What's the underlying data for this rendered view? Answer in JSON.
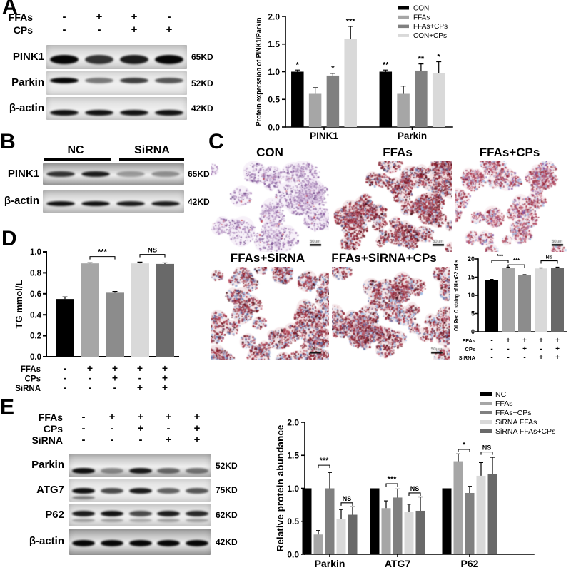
{
  "panels": {
    "a": {
      "letter": "A",
      "blot": {
        "condition_rows": [
          {
            "label": "FFAs",
            "signs": [
              "-",
              "+",
              "+",
              "-"
            ]
          },
          {
            "label": "CPs",
            "signs": [
              "-",
              "-",
              "+",
              "+"
            ]
          }
        ],
        "strips": [
          {
            "label": "PINK1",
            "kd": "65KD",
            "bg": "#cbcbcb",
            "bands": [
              1.0,
              0.8,
              0.9,
              1.0
            ]
          },
          {
            "label": "Parkin",
            "kd": "52KD",
            "bg": "#e2e2e2",
            "bands": [
              1.0,
              0.5,
              0.75,
              0.65
            ]
          },
          {
            "label": "β-actin",
            "kd": "42KD",
            "bg": "#d8d8d8",
            "bands": [
              0.95,
              0.95,
              0.95,
              0.95
            ]
          }
        ]
      }
    },
    "b": {
      "letter": "B",
      "blot": {
        "groups": [
          {
            "label": "NC"
          },
          {
            "label": "SiRNA"
          }
        ],
        "strips": [
          {
            "label": "PINK1",
            "kd": "65KD",
            "bg": "#a2a2a2",
            "bands": [
              0.8,
              0.9,
              0.35,
              0.4
            ]
          },
          {
            "label": "β-actin",
            "kd": "42KD",
            "bg": "#c4c4c4",
            "bands": [
              0.95,
              0.95,
              0.9,
              0.9
            ]
          }
        ]
      }
    },
    "c": {
      "letter": "C",
      "scale_bar_label": "50μm",
      "micrographs": [
        {
          "label": "CON",
          "seed": 11,
          "clusters": 26,
          "r_min": 8,
          "r_max": 20,
          "density": 0.38,
          "wash": "#ecdff1",
          "wash_alpha": 0.85,
          "dot_size": 2.0,
          "colors": [
            [
              "#a57fb5",
              0.38
            ],
            [
              "#8a5f9f",
              0.2
            ],
            [
              "#c9aed3",
              0.22
            ],
            [
              "#6d4a86",
              0.12
            ],
            [
              "#c23b4e",
              0.03
            ],
            [
              "#ffffff",
              0.05
            ]
          ]
        },
        {
          "label": "FFAs",
          "seed": 22,
          "clusters": 46,
          "r_min": 7,
          "r_max": 17,
          "density": 0.6,
          "wash": "#d9a3ab",
          "wash_alpha": 0.55,
          "dot_size": 2.2,
          "colors": [
            [
              "#8e1f2e",
              0.3
            ],
            [
              "#6b0f1c",
              0.18
            ],
            [
              "#b44458",
              0.2
            ],
            [
              "#9db9e2",
              0.13
            ],
            [
              "#54649e",
              0.07
            ],
            [
              "#3a0a12",
              0.06
            ],
            [
              "#eef2fa",
              0.06
            ]
          ]
        },
        {
          "label": "FFAs+CPs",
          "seed": 33,
          "clusters": 30,
          "r_min": 7,
          "r_max": 16,
          "density": 0.55,
          "wash": "#e6bcc6",
          "wash_alpha": 0.5,
          "dot_size": 2.1,
          "colors": [
            [
              "#a8374e",
              0.28
            ],
            [
              "#8e1f2e",
              0.16
            ],
            [
              "#c86a80",
              0.22
            ],
            [
              "#9db9e2",
              0.17
            ],
            [
              "#dce6f5",
              0.08
            ],
            [
              "#7d4f9e",
              0.09
            ]
          ]
        },
        {
          "label": "FFAs+SiRNA",
          "seed": 44,
          "clusters": 44,
          "r_min": 7,
          "r_max": 16,
          "density": 0.58,
          "wash": "#d9a3ab",
          "wash_alpha": 0.5,
          "dot_size": 2.2,
          "colors": [
            [
              "#8e1f2e",
              0.26
            ],
            [
              "#6b0f1c",
              0.15
            ],
            [
              "#b44458",
              0.2
            ],
            [
              "#9db9e2",
              0.17
            ],
            [
              "#54649e",
              0.09
            ],
            [
              "#3a0a12",
              0.05
            ],
            [
              "#eef2fa",
              0.08
            ]
          ]
        },
        {
          "label": "FFAs+SiRNA+CPs",
          "seed": 55,
          "clusters": 42,
          "r_min": 7,
          "r_max": 16,
          "density": 0.56,
          "wash": "#d9a3ab",
          "wash_alpha": 0.5,
          "dot_size": 2.2,
          "colors": [
            [
              "#8e1f2e",
              0.26
            ],
            [
              "#6b0f1c",
              0.14
            ],
            [
              "#b44458",
              0.21
            ],
            [
              "#9db9e2",
              0.17
            ],
            [
              "#54649e",
              0.09
            ],
            [
              "#3a0a12",
              0.05
            ],
            [
              "#eef2fa",
              0.08
            ]
          ]
        }
      ]
    },
    "d": {
      "letter": "D"
    },
    "e": {
      "letter": "E",
      "blot": {
        "condition_rows": [
          {
            "label": "FFAs",
            "signs": [
              "-",
              "+",
              "+",
              "+",
              "+"
            ]
          },
          {
            "label": "CPs",
            "signs": [
              "-",
              "-",
              "+",
              "-",
              "+"
            ]
          },
          {
            "label": "SiRNA",
            "signs": [
              "-",
              "-",
              "-",
              "+",
              "+"
            ]
          }
        ],
        "strips": [
          {
            "label": "Parkin",
            "kd": "52KD",
            "bg": "#b3b3b3",
            "bands": [
              0.95,
              0.4,
              0.9,
              0.55,
              0.5
            ]
          },
          {
            "label": "ATG7",
            "kd": "75KD",
            "bg": "#e0e0e0",
            "bands": [
              0.95,
              0.7,
              0.9,
              0.6,
              0.65
            ],
            "sub": [
              0.45,
              0,
              0,
              0,
              0
            ]
          },
          {
            "label": "P62",
            "kd": "62KD",
            "bg": "#d4d4d4",
            "bands": [
              0.9,
              0.95,
              0.7,
              0.9,
              0.85
            ],
            "sub": [
              0.3,
              0.3,
              0.25,
              0.3,
              0.3
            ]
          },
          {
            "label": "β-actin",
            "kd": "42KD",
            "bg": "#9c9c9c",
            "bands": [
              1,
              1,
              1,
              1,
              1
            ]
          }
        ]
      }
    }
  },
  "chart_data": [
    {
      "id": "A_pink1_parkin",
      "type": "bar",
      "ylabel": "Protein experssion of PINK1/Parkin",
      "ylim": [
        0,
        2.0
      ],
      "ytick_labels": [
        "0.0",
        "0.5",
        "1.0",
        "1.5",
        "2.0"
      ],
      "categories": [
        "PINK1",
        "Parkin"
      ],
      "legend_position": "top-right",
      "grid": false,
      "series": [
        {
          "name": "CON",
          "color": "#000000",
          "values": [
            1.0,
            1.0
          ],
          "errors": [
            0.03,
            0.03
          ],
          "sig": [
            "*",
            "**"
          ]
        },
        {
          "name": "FFAs",
          "color": "#a6a6a6",
          "values": [
            0.6,
            0.6
          ],
          "errors": [
            0.11,
            0.14
          ],
          "sig": [
            "",
            ""
          ]
        },
        {
          "name": "FFAs+CPs",
          "color": "#808080",
          "values": [
            0.93,
            1.02
          ],
          "errors": [
            0.04,
            0.12
          ],
          "sig": [
            "*",
            "**"
          ]
        },
        {
          "name": "CON+CPs",
          "color": "#d9d9d9",
          "values": [
            1.6,
            0.97
          ],
          "errors": [
            0.22,
            0.21
          ],
          "sig": [
            "***",
            "*"
          ]
        }
      ]
    },
    {
      "id": "C_oilred",
      "type": "bar",
      "ylabel": "Oil Red O staing of HepG2 cells",
      "ylim": [
        0,
        20
      ],
      "ytick_labels": [
        "0",
        "5",
        "10",
        "15",
        "20"
      ],
      "values": [
        14.2,
        17.6,
        15.5,
        17.4,
        17.6
      ],
      "errors": [
        0.2,
        0.15,
        0.2,
        0.15,
        0.15
      ],
      "bar_colors": [
        "#000000",
        "#a6a6a6",
        "#8c8c8c",
        "#d9d9d9",
        "#696969"
      ],
      "sign_rows": [
        {
          "label": "FFAs",
          "signs": [
            "-",
            "+",
            "+",
            "+",
            "+"
          ]
        },
        {
          "label": "CPs",
          "signs": [
            "-",
            "-",
            "+",
            "-",
            "+"
          ]
        },
        {
          "label": "SiRNA",
          "signs": [
            "-",
            "-",
            "-",
            "+",
            "+"
          ]
        }
      ],
      "brackets": [
        {
          "from": 0,
          "to": 1,
          "label": "***",
          "y": 19.6
        },
        {
          "from": 1,
          "to": 2,
          "label": "***",
          "y": 18.4
        },
        {
          "from": 3,
          "to": 4,
          "label": "NS",
          "y": 19.5
        }
      ]
    },
    {
      "id": "D_tg",
      "type": "bar",
      "ylabel": "TG mmol/L",
      "ylim": [
        0,
        1.0
      ],
      "ytick_labels": [
        "0.0",
        "0.2",
        "0.4",
        "0.6",
        "0.8",
        "1.0"
      ],
      "values": [
        0.55,
        0.89,
        0.61,
        0.89,
        0.885
      ],
      "errors": [
        0.02,
        0.006,
        0.012,
        0.012,
        0.01
      ],
      "bar_colors": [
        "#000000",
        "#a6a6a6",
        "#8c8c8c",
        "#d9d9d9",
        "#696969"
      ],
      "sign_rows": [
        {
          "label": "FFAs",
          "signs": [
            "-",
            "+",
            "+",
            "+",
            "+"
          ]
        },
        {
          "label": "CPs",
          "signs": [
            "-",
            "-",
            "+",
            "-",
            "+"
          ]
        },
        {
          "label": "SiRNA",
          "signs": [
            "-",
            "-",
            "-",
            "+",
            "+"
          ]
        }
      ],
      "brackets": [
        {
          "from": 1,
          "to": 2,
          "label": "***",
          "y": 0.955
        },
        {
          "from": 3,
          "to": 4,
          "label": "NS",
          "y": 0.975
        }
      ]
    },
    {
      "id": "E_relative",
      "type": "bar",
      "ylabel": "Relative protein abundance",
      "ylim": [
        0,
        2.0
      ],
      "ytick_labels": [
        "0.0",
        "0.5",
        "1.0",
        "1.5",
        "2.0"
      ],
      "categories": [
        "Parkin",
        "ATG7",
        "P62"
      ],
      "legend_position": "top-right",
      "grid": false,
      "series": [
        {
          "name": "NC",
          "color": "#000000",
          "values": [
            1.0,
            1.0,
            1.0
          ],
          "errors": [
            0,
            0,
            0
          ]
        },
        {
          "name": "FFAs",
          "color": "#a6a6a6",
          "values": [
            0.3,
            0.7,
            1.41
          ],
          "errors": [
            0.06,
            0.11,
            0.11
          ]
        },
        {
          "name": "FFAs+CPs",
          "color": "#808080",
          "values": [
            1.0,
            0.86,
            0.93
          ],
          "errors": [
            0.24,
            0.13,
            0.1
          ]
        },
        {
          "name": "SiRNA FFAs",
          "color": "#d9d9d9",
          "values": [
            0.53,
            0.64,
            1.19
          ],
          "errors": [
            0.15,
            0.12,
            0.2
          ]
        },
        {
          "name": "SiRNA FFAs+CPs",
          "color": "#696969",
          "values": [
            0.6,
            0.66,
            1.22
          ],
          "errors": [
            0.12,
            0.21,
            0.25
          ]
        }
      ],
      "brackets": [
        {
          "cat": 0,
          "from": 1,
          "to": 2,
          "label": "***",
          "y": 1.35
        },
        {
          "cat": 0,
          "from": 3,
          "to": 4,
          "label": "NS",
          "y": 0.78
        },
        {
          "cat": 1,
          "from": 1,
          "to": 2,
          "label": "***",
          "y": 1.07
        },
        {
          "cat": 1,
          "from": 3,
          "to": 4,
          "label": "NS",
          "y": 0.93
        },
        {
          "cat": 2,
          "from": 1,
          "to": 2,
          "label": "*",
          "y": 1.59
        },
        {
          "cat": 2,
          "from": 3,
          "to": 4,
          "label": "NS",
          "y": 1.55
        }
      ]
    }
  ]
}
